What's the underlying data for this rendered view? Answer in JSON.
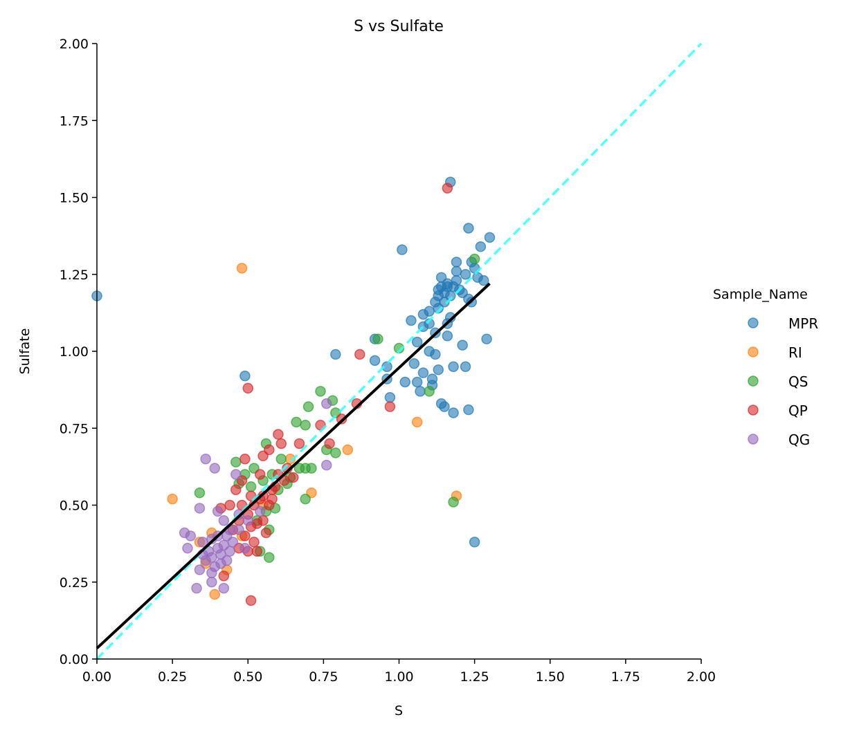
{
  "chart_data": {
    "type": "scatter",
    "title": "S vs Sulfate",
    "xlabel": "S",
    "ylabel": "Sulfate",
    "xlim": [
      0,
      2
    ],
    "ylim": [
      0,
      2
    ],
    "xticks": [
      "0.00",
      "0.25",
      "0.50",
      "0.75",
      "1.00",
      "1.25",
      "1.50",
      "1.75",
      "2.00"
    ],
    "yticks": [
      "0.00",
      "0.25",
      "0.50",
      "0.75",
      "1.00",
      "1.25",
      "1.50",
      "1.75",
      "2.00"
    ],
    "grid": false,
    "legend": {
      "title": "Sample_Name",
      "placement": "right outside"
    },
    "series": [
      {
        "name": "MPR",
        "color": "#1f77b4",
        "points": [
          [
            0.0,
            1.18
          ],
          [
            0.49,
            0.92
          ],
          [
            0.79,
            0.99
          ],
          [
            0.92,
            1.04
          ],
          [
            0.92,
            0.97
          ],
          [
            0.96,
            0.95
          ],
          [
            0.96,
            0.91
          ],
          [
            0.97,
            0.85
          ],
          [
            1.01,
            1.33
          ],
          [
            1.02,
            0.9
          ],
          [
            1.04,
            1.1
          ],
          [
            1.05,
            0.96
          ],
          [
            1.06,
            0.9
          ],
          [
            1.06,
            1.03
          ],
          [
            1.07,
            0.87
          ],
          [
            1.08,
            1.12
          ],
          [
            1.08,
            0.93
          ],
          [
            1.1,
            1.13
          ],
          [
            1.1,
            1.0
          ],
          [
            1.1,
            1.09
          ],
          [
            1.11,
            0.89
          ],
          [
            1.11,
            0.91
          ],
          [
            1.12,
            0.99
          ],
          [
            1.13,
            1.14
          ],
          [
            1.13,
            1.2
          ],
          [
            1.13,
            0.94
          ],
          [
            1.14,
            1.24
          ],
          [
            1.14,
            0.83
          ],
          [
            1.15,
            0.82
          ],
          [
            1.16,
            1.21
          ],
          [
            1.16,
            1.05
          ],
          [
            1.17,
            1.55
          ],
          [
            1.18,
            0.95
          ],
          [
            1.18,
            0.8
          ],
          [
            1.19,
            1.29
          ],
          [
            1.19,
            1.23
          ],
          [
            1.2,
            1.2
          ],
          [
            1.21,
            1.19
          ],
          [
            1.21,
            1.02
          ],
          [
            1.22,
            0.95
          ],
          [
            1.23,
            0.81
          ],
          [
            1.23,
            1.4
          ],
          [
            1.23,
            1.17
          ],
          [
            1.24,
            1.16
          ],
          [
            1.25,
            0.38
          ],
          [
            1.25,
            1.27
          ],
          [
            1.27,
            1.34
          ],
          [
            1.28,
            1.23
          ],
          [
            1.29,
            1.04
          ],
          [
            1.3,
            1.37
          ],
          [
            1.14,
            1.21
          ],
          [
            1.15,
            1.19
          ],
          [
            1.16,
            1.22
          ],
          [
            1.17,
            1.18
          ],
          [
            1.15,
            1.16
          ],
          [
            1.18,
            1.21
          ],
          [
            1.17,
            1.11
          ],
          [
            1.16,
            1.09
          ],
          [
            1.12,
            1.16
          ],
          [
            1.13,
            1.18
          ],
          [
            1.19,
            1.26
          ],
          [
            1.22,
            1.25
          ],
          [
            1.24,
            1.29
          ],
          [
            1.26,
            1.24
          ],
          [
            1.08,
            1.08
          ],
          [
            1.12,
            1.06
          ]
        ]
      },
      {
        "name": "RI",
        "color": "#ff7f0e",
        "points": [
          [
            0.48,
            1.27
          ],
          [
            0.25,
            0.52
          ],
          [
            0.39,
            0.21
          ],
          [
            1.06,
            0.77
          ],
          [
            1.19,
            0.53
          ],
          [
            0.83,
            0.68
          ],
          [
            0.71,
            0.54
          ],
          [
            0.43,
            0.29
          ],
          [
            0.38,
            0.41
          ],
          [
            0.34,
            0.38
          ],
          [
            0.64,
            0.65
          ],
          [
            0.48,
            0.4
          ],
          [
            0.55,
            0.5
          ],
          [
            0.36,
            0.31
          ]
        ]
      },
      {
        "name": "QS",
        "color": "#2ca02c",
        "points": [
          [
            0.93,
            1.04
          ],
          [
            1.0,
            1.01
          ],
          [
            1.1,
            0.87
          ],
          [
            1.18,
            0.51
          ],
          [
            1.25,
            1.3
          ],
          [
            0.74,
            0.87
          ],
          [
            0.7,
            0.82
          ],
          [
            0.69,
            0.76
          ],
          [
            0.66,
            0.77
          ],
          [
            0.78,
            0.84
          ],
          [
            0.79,
            0.8
          ],
          [
            0.79,
            0.67
          ],
          [
            0.76,
            0.68
          ],
          [
            0.71,
            0.62
          ],
          [
            0.69,
            0.52
          ],
          [
            0.34,
            0.54
          ],
          [
            0.46,
            0.64
          ],
          [
            0.57,
            0.33
          ],
          [
            0.57,
            0.42
          ],
          [
            0.61,
            0.65
          ],
          [
            0.64,
            0.59
          ],
          [
            0.56,
            0.7
          ],
          [
            0.52,
            0.62
          ],
          [
            0.49,
            0.6
          ],
          [
            0.55,
            0.58
          ],
          [
            0.58,
            0.6
          ],
          [
            0.6,
            0.55
          ],
          [
            0.67,
            0.62
          ],
          [
            0.53,
            0.45
          ],
          [
            0.56,
            0.48
          ],
          [
            0.51,
            0.56
          ],
          [
            0.63,
            0.57
          ],
          [
            0.69,
            0.62
          ],
          [
            0.47,
            0.57
          ],
          [
            0.59,
            0.49
          ],
          [
            0.54,
            0.35
          ]
        ]
      },
      {
        "name": "QP",
        "color": "#d62728",
        "points": [
          [
            1.16,
            1.53
          ],
          [
            0.87,
            0.99
          ],
          [
            0.97,
            0.82
          ],
          [
            0.5,
            0.88
          ],
          [
            0.86,
            0.83
          ],
          [
            0.74,
            0.76
          ],
          [
            0.81,
            0.78
          ],
          [
            0.77,
            0.7
          ],
          [
            0.67,
            0.7
          ],
          [
            0.6,
            0.73
          ],
          [
            0.51,
            0.19
          ],
          [
            0.42,
            0.27
          ],
          [
            0.41,
            0.49
          ],
          [
            0.49,
            0.65
          ],
          [
            0.55,
            0.66
          ],
          [
            0.48,
            0.58
          ],
          [
            0.57,
            0.68
          ],
          [
            0.61,
            0.7
          ],
          [
            0.63,
            0.62
          ],
          [
            0.65,
            0.59
          ],
          [
            0.58,
            0.55
          ],
          [
            0.55,
            0.53
          ],
          [
            0.52,
            0.5
          ],
          [
            0.5,
            0.47
          ],
          [
            0.53,
            0.44
          ],
          [
            0.56,
            0.41
          ],
          [
            0.54,
            0.52
          ],
          [
            0.57,
            0.5
          ],
          [
            0.59,
            0.56
          ],
          [
            0.51,
            0.43
          ],
          [
            0.49,
            0.4
          ],
          [
            0.52,
            0.38
          ],
          [
            0.47,
            0.45
          ],
          [
            0.45,
            0.42
          ],
          [
            0.53,
            0.35
          ],
          [
            0.5,
            0.35
          ],
          [
            0.55,
            0.45
          ],
          [
            0.6,
            0.6
          ],
          [
            0.62,
            0.58
          ],
          [
            0.46,
            0.55
          ],
          [
            0.44,
            0.5
          ],
          [
            0.54,
            0.6
          ],
          [
            0.48,
            0.5
          ],
          [
            0.51,
            0.53
          ],
          [
            0.58,
            0.52
          ],
          [
            0.47,
            0.36
          ]
        ]
      },
      {
        "name": "QG",
        "color": "#9467bd",
        "points": [
          [
            0.36,
            0.65
          ],
          [
            0.39,
            0.62
          ],
          [
            0.34,
            0.49
          ],
          [
            0.29,
            0.41
          ],
          [
            0.3,
            0.36
          ],
          [
            0.33,
            0.23
          ],
          [
            0.38,
            0.25
          ],
          [
            0.42,
            0.23
          ],
          [
            0.76,
            0.83
          ],
          [
            0.76,
            0.63
          ],
          [
            0.46,
            0.6
          ],
          [
            0.54,
            0.48
          ],
          [
            0.35,
            0.38
          ],
          [
            0.37,
            0.35
          ],
          [
            0.38,
            0.33
          ],
          [
            0.4,
            0.36
          ],
          [
            0.41,
            0.34
          ],
          [
            0.39,
            0.3
          ],
          [
            0.42,
            0.37
          ],
          [
            0.43,
            0.4
          ],
          [
            0.36,
            0.32
          ],
          [
            0.34,
            0.29
          ],
          [
            0.4,
            0.4
          ],
          [
            0.44,
            0.42
          ],
          [
            0.45,
            0.38
          ],
          [
            0.38,
            0.39
          ],
          [
            0.41,
            0.31
          ],
          [
            0.31,
            0.4
          ],
          [
            0.35,
            0.34
          ],
          [
            0.42,
            0.45
          ],
          [
            0.47,
            0.47
          ],
          [
            0.5,
            0.45
          ],
          [
            0.47,
            0.42
          ],
          [
            0.44,
            0.35
          ],
          [
            0.49,
            0.36
          ],
          [
            0.4,
            0.48
          ],
          [
            0.38,
            0.28
          ],
          [
            0.43,
            0.32
          ]
        ]
      }
    ],
    "lines": [
      {
        "kind": "regression",
        "color": "#000000",
        "style": "solid",
        "x": [
          0,
          1.3
        ],
        "y": [
          0.035,
          1.22
        ]
      },
      {
        "kind": "1:1",
        "color": "#33ffff",
        "style": "dashed",
        "x": [
          0,
          2
        ],
        "y": [
          0,
          2
        ]
      }
    ]
  }
}
